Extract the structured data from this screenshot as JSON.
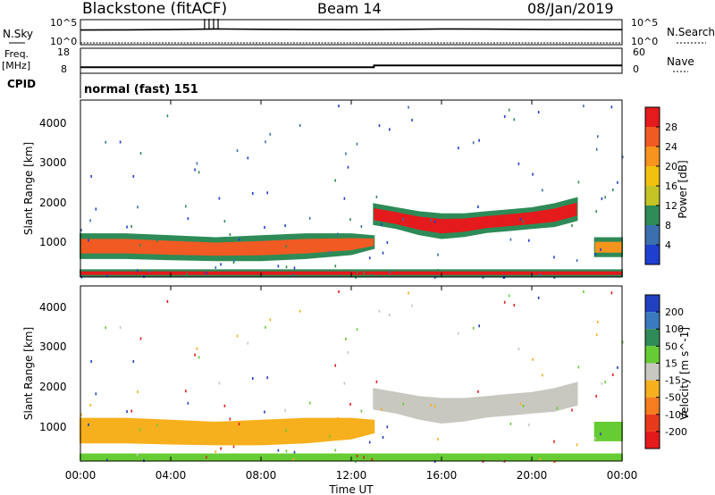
{
  "header": {
    "station": "Blackstone (fitACF)",
    "beam": "Beam 14",
    "date": "08/Jan/2019"
  },
  "noise_panel": {
    "left_label": "N.Sky",
    "right_label": "N.Search",
    "left_ticks": [
      "10^5",
      "10^0"
    ],
    "right_ticks": [
      "10^5",
      "10^0"
    ]
  },
  "freq_panel": {
    "left_label_1": "Freq.",
    "left_label_2": "[MHz]",
    "right_label": "Nave",
    "left_ticks": [
      "18",
      "8"
    ],
    "right_ticks": [
      "60",
      "0"
    ]
  },
  "cpid_panel": {
    "label": "CPID",
    "text": "normal (fast) 151"
  },
  "power_panel": {
    "ylabel": "Slant Range [km]",
    "yticks": [
      "4000",
      "3000",
      "2000",
      "1000"
    ],
    "colorbar_label": "Power [dB]",
    "colorbar_ticks": [
      "28",
      "24",
      "20",
      "16",
      "12",
      "8",
      "4"
    ],
    "colorbar_colors": [
      "#e41a1c",
      "#f15a22",
      "#f7941d",
      "#f2c10f",
      "#c4c427",
      "#2e8b57",
      "#3a6fb0",
      "#1f3fd0"
    ]
  },
  "velocity_panel": {
    "ylabel": "Slant Range [km]",
    "yticks": [
      "4000",
      "3000",
      "2000",
      "1000"
    ],
    "colorbar_label": "Velocity [m s^-1]",
    "colorbar_ticks": [
      "200",
      "100",
      "50",
      "15",
      "-15",
      "-50",
      "-100",
      "-200"
    ],
    "colorbar_colors": [
      "#2040c0",
      "#3a7abf",
      "#2e8b57",
      "#66cc33",
      "#c8c8c0",
      "#f7b01d",
      "#f57c1f",
      "#e83a1a",
      "#e41a1c"
    ]
  },
  "x_axis": {
    "ticks": [
      "00:00",
      "04:00",
      "08:00",
      "12:00",
      "16:00",
      "20:00",
      "00:00"
    ],
    "label": "Time UT"
  },
  "chart_data": [
    {
      "type": "line",
      "title": "N.Sky / N.Search",
      "x": [
        0,
        2,
        4,
        6,
        8,
        10,
        12,
        14,
        16,
        18,
        20,
        22,
        24
      ],
      "series": [
        {
          "name": "N.Sky",
          "values": [
            1000,
            1100,
            1300,
            1800,
            1500,
            1300,
            1200,
            1400,
            1800,
            1600,
            1400,
            1300,
            1200
          ]
        },
        {
          "name": "N.Search",
          "values": [
            1,
            1,
            1,
            1,
            1,
            1,
            1,
            1,
            1,
            1,
            1,
            1,
            1
          ]
        }
      ],
      "xlim": [
        0,
        24
      ],
      "ylim": [
        1,
        100000
      ],
      "yscale": "log"
    },
    {
      "type": "line",
      "title": "Freq. [MHz] / Nave",
      "x": [
        0,
        13,
        13.01,
        24
      ],
      "series": [
        {
          "name": "Freq. [MHz]",
          "values": [
            10.0,
            10.0,
            10.8,
            10.8
          ]
        }
      ],
      "xlim": [
        0,
        24
      ],
      "ylim": [
        8,
        18
      ]
    },
    {
      "type": "heatmap",
      "title": "Power [dB]",
      "xlabel": "Time UT",
      "ylabel": "Slant Range [km]",
      "xlim": [
        0,
        24
      ],
      "ylim": [
        180,
        4600
      ],
      "zlim": [
        0,
        30
      ],
      "bands": [
        {
          "x": [
            0.0,
            2.0,
            4.0,
            6.0,
            8.0,
            10.0,
            12.0,
            13.0
          ],
          "range_low": [
            650,
            650,
            620,
            600,
            600,
            650,
            750,
            900
          ],
          "range_high": [
            1250,
            1250,
            1200,
            1150,
            1200,
            1250,
            1250,
            1200
          ],
          "peak_db": 24
        },
        {
          "x": [
            13.0,
            14.0,
            15.0,
            16.0,
            17.0,
            18.0,
            19.0,
            20.0,
            21.0,
            22.0
          ],
          "range_low": [
            1500,
            1400,
            1250,
            1150,
            1200,
            1300,
            1350,
            1400,
            1450,
            1600
          ],
          "range_high": [
            2000,
            1900,
            1800,
            1750,
            1750,
            1800,
            1850,
            1900,
            2000,
            2150
          ],
          "peak_db": 28
        },
        {
          "x": [
            22.8,
            23.2,
            24.0
          ],
          "range_low": [
            700,
            700,
            700
          ],
          "range_high": [
            1150,
            1150,
            1150
          ],
          "peak_db": 20
        },
        {
          "x": [
            0.0,
            24.0
          ],
          "range_low": [
            200,
            200
          ],
          "range_high": [
            350,
            350
          ],
          "peak_db": 26
        }
      ]
    },
    {
      "type": "heatmap",
      "title": "Velocity [m s^-1]",
      "xlabel": "Time UT",
      "ylabel": "Slant Range [km]",
      "xlim": [
        0,
        24
      ],
      "ylim": [
        180,
        4600
      ],
      "zlim": [
        -200,
        200
      ],
      "bands": [
        {
          "x": [
            0.0,
            2.0,
            4.0,
            6.0,
            8.0,
            10.0,
            12.0,
            13.0
          ],
          "range_low": [
            650,
            650,
            620,
            600,
            600,
            650,
            750,
            900
          ],
          "range_high": [
            1250,
            1250,
            1200,
            1150,
            1200,
            1250,
            1250,
            1200
          ],
          "velocity": -40
        },
        {
          "x": [
            13.0,
            14.0,
            15.0,
            16.0,
            17.0,
            18.0,
            19.0,
            20.0,
            21.0,
            22.0
          ],
          "range_low": [
            1500,
            1400,
            1250,
            1150,
            1200,
            1300,
            1350,
            1400,
            1450,
            1600
          ],
          "range_high": [
            2000,
            1900,
            1800,
            1750,
            1750,
            1800,
            1850,
            1900,
            2000,
            2150
          ],
          "velocity": 0
        },
        {
          "x": [
            22.8,
            23.2,
            24.0
          ],
          "range_low": [
            700,
            700,
            700
          ],
          "range_high": [
            1150,
            1150,
            1150
          ],
          "velocity": 40
        },
        {
          "x": [
            0.0,
            24.0
          ],
          "range_low": [
            200,
            200
          ],
          "range_high": [
            350,
            350
          ],
          "velocity": 20
        }
      ]
    }
  ]
}
